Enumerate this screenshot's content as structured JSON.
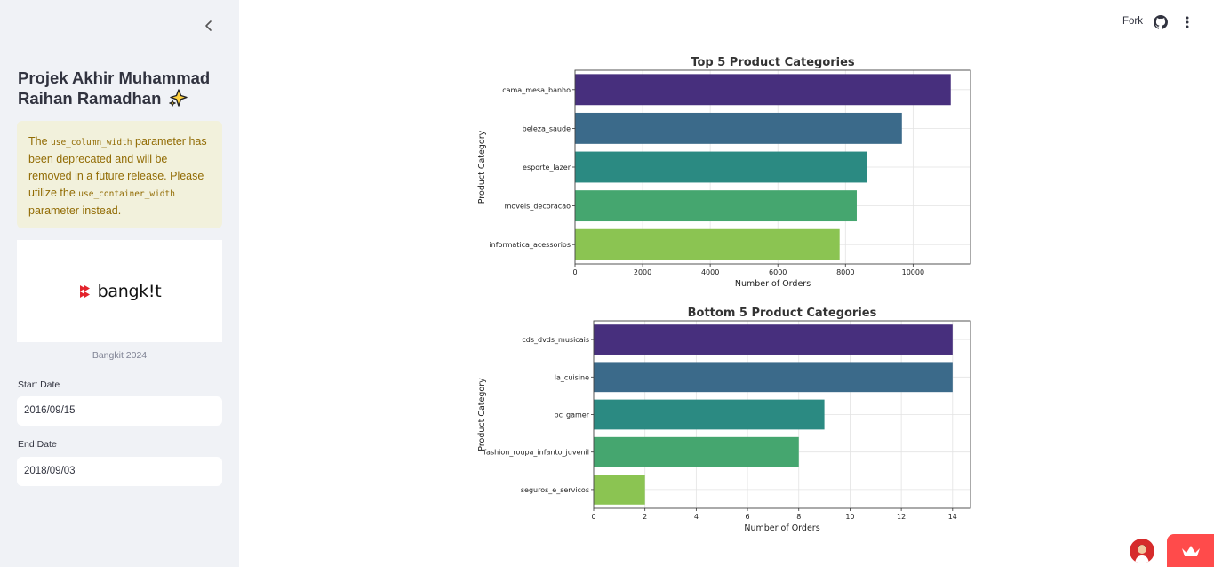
{
  "sidebar": {
    "title": "Projek Akhir Muhammad Raihan Ramadhan",
    "warning": {
      "pre": "The ",
      "code1": "use_column_width",
      "mid": " parameter has been deprecated and will be removed in a future release. Please utilize the ",
      "code2": "use_container_width",
      "post": " parameter instead."
    },
    "logo_text": "bangk!t",
    "logo_caption": "Bangkit 2024",
    "start_date_label": "Start Date",
    "start_date_value": "2016/09/15",
    "end_date_label": "End Date",
    "end_date_value": "2018/09/03"
  },
  "toolbar": {
    "fork_label": "Fork"
  },
  "icons": {
    "collapse": "chevron-left-icon",
    "sparkle": "sparkles-icon",
    "github": "github-icon",
    "menu": "kebab-menu-icon",
    "crown": "crown-icon"
  },
  "colors": {
    "sidebar_bg": "#f0f2f6",
    "warning_bg": "#f2f1dc",
    "warning_text": "#926c05",
    "accent": "#ff4b4b",
    "viridis": [
      "#472f7d",
      "#3b6a8a",
      "#2b8a82",
      "#45a66f",
      "#8bc452"
    ]
  },
  "chart_data": [
    {
      "type": "bar",
      "orientation": "horizontal",
      "title": "Top 5 Product Categories",
      "xlabel": "Number of Orders",
      "ylabel": "Product Category",
      "categories": [
        "cama_mesa_banho",
        "beleza_saude",
        "esporte_lazer",
        "moveis_decoracao",
        "informatica_acessorios"
      ],
      "values": [
        11115,
        9670,
        8641,
        8334,
        7827
      ],
      "xlim": [
        0,
        11700
      ],
      "xticks": [
        0,
        2000,
        4000,
        6000,
        8000,
        10000
      ],
      "grid": true
    },
    {
      "type": "bar",
      "orientation": "horizontal",
      "title": "Bottom 5 Product Categories",
      "xlabel": "Number of Orders",
      "ylabel": "Product Category",
      "categories": [
        "cds_dvds_musicais",
        "la_cuisine",
        "pc_gamer",
        "fashion_roupa_infanto_juvenil",
        "seguros_e_servicos"
      ],
      "values": [
        14,
        14,
        9,
        8,
        2
      ],
      "xlim": [
        0,
        14.7
      ],
      "xticks": [
        0,
        2,
        4,
        6,
        8,
        10,
        12,
        14
      ],
      "grid": true
    }
  ]
}
